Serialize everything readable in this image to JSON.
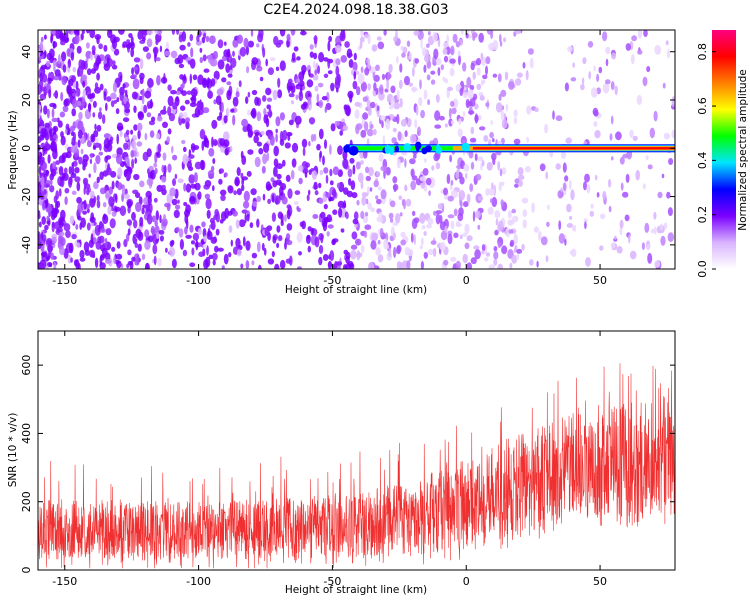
{
  "figure": {
    "title": "C2E4.2024.098.18.38.G03"
  },
  "chart_data": [
    {
      "type": "heatmap",
      "xlabel": "Height of straight line (km)",
      "ylabel": "Frequency (Hz)",
      "xlim": [
        -160,
        78
      ],
      "ylim": [
        -50,
        49
      ],
      "xticks": [
        -150,
        -100,
        -50,
        0,
        50
      ],
      "yticks": [
        -40,
        -20,
        0,
        20,
        40
      ],
      "grid": false,
      "signal_band": {
        "x_start": -45,
        "x_end": 78,
        "frequency": 0
      },
      "colorbar": {
        "label": "Normalized spectral amplitude",
        "range": [
          0,
          0.88
        ],
        "ticks": [
          0.0,
          0.2,
          0.4,
          0.6,
          0.8
        ],
        "colors": [
          "#ffffff",
          "#d9b3ff",
          "#7a00ff",
          "#0000ff",
          "#00e5ff",
          "#00ff00",
          "#ffff00",
          "#ff7f00",
          "#ff0000",
          "#ff0080"
        ]
      }
    },
    {
      "type": "line",
      "xlabel": "Height of straight line (km)",
      "ylabel": "SNR (10 * v/v)",
      "xlim": [
        -160,
        78
      ],
      "ylim": [
        0,
        700
      ],
      "xticks": [
        -150,
        -100,
        -50,
        0,
        50
      ],
      "yticks": [
        0,
        200,
        400,
        600
      ],
      "grid": false,
      "color": "#f03030",
      "trend": {
        "x": [
          -160,
          -100,
          -50,
          -20,
          0,
          20,
          40,
          78
        ],
        "low": [
          30,
          30,
          35,
          40,
          60,
          100,
          150,
          160
        ],
        "high": [
          210,
          200,
          220,
          260,
          330,
          400,
          460,
          520
        ]
      }
    }
  ]
}
